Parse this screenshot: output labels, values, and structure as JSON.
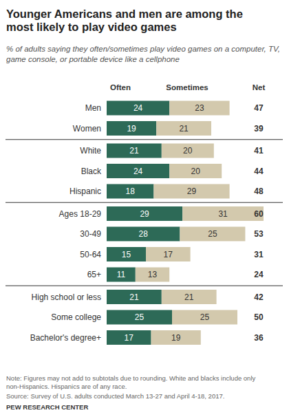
{
  "chart_data": {
    "type": "bar",
    "orientation": "horizontal",
    "stacked": true,
    "data_labels": true,
    "tick_labels": "y",
    "grid": false,
    "title": "Younger Americans and men are among the most likely to play video games",
    "subtitle": "% of adults saying they often/sometimes play video games on a computer, TV, game console, or portable device like a cellphone",
    "categories": [
      "Men",
      "Women",
      "White",
      "Black",
      "Hispanic",
      "Ages 18-29",
      "30-49",
      "50-64",
      "65+",
      "High school or less",
      "Some college",
      "Bachelor's degree+"
    ],
    "series": [
      {
        "name": "Often",
        "color": "#2d6a57",
        "values": [
          24,
          19,
          21,
          24,
          18,
          29,
          28,
          15,
          11,
          21,
          25,
          17
        ]
      },
      {
        "name": "Sometimes",
        "color": "#d3c9ad",
        "values": [
          23,
          21,
          20,
          20,
          29,
          31,
          25,
          17,
          13,
          21,
          25,
          19
        ]
      }
    ],
    "net": {
      "name": "Net",
      "values": [
        47,
        39,
        41,
        44,
        48,
        60,
        53,
        31,
        24,
        42,
        50,
        36
      ]
    },
    "xlim": [
      0,
      60
    ],
    "note": "Note: Figures may not add to subtotals due to rounding. White and blacks include only non-Hispanics. Hispanics are of any race.",
    "source": "Source: Survey of U.S. adults conducted March 13-27 and April 4-18, 2017.",
    "credit": "PEW RESEARCH CENTER"
  }
}
